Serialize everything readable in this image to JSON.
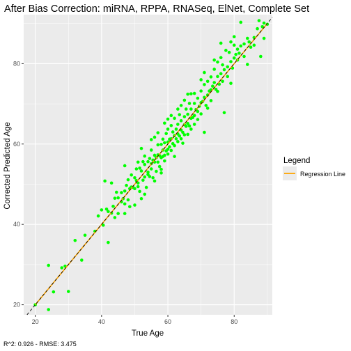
{
  "chart_data": {
    "type": "scatter",
    "title": "After Bias Correction: miRNA, RPPA, RNASeq, ElNet, Complete Set",
    "xlabel": "True Age",
    "ylabel": "Corrected Predicted Age",
    "caption": "R^2: 0.926 - RMSE: 3.475",
    "xlim": [
      16.5,
      91.5
    ],
    "ylim": [
      17.5,
      92.2
    ],
    "x_ticks": [
      20,
      40,
      60,
      80
    ],
    "y_ticks": [
      20,
      40,
      60,
      80
    ],
    "grid": true,
    "legend": {
      "title": "Legend",
      "position": "right",
      "entries": [
        {
          "label": "Regression Line",
          "color": "#FFA500"
        }
      ]
    },
    "colors": {
      "points": "#00FF00",
      "regression": "#FFA500",
      "identity": "#000000",
      "panel": "#EBEBEB",
      "grid": "#FFFFFF"
    },
    "identity_line": {
      "slope": 1,
      "intercept": 0,
      "style": "dashed"
    },
    "regression_line": {
      "slope": 1.0,
      "intercept": 0.0
    },
    "points": [
      [
        20,
        20
      ],
      [
        24,
        29.8
      ],
      [
        24,
        18.8
      ],
      [
        25.5,
        23.2
      ],
      [
        28,
        29.2
      ],
      [
        29,
        29.6
      ],
      [
        30,
        23.3
      ],
      [
        32,
        36
      ],
      [
        34,
        31.1
      ],
      [
        35,
        37.3
      ],
      [
        38,
        38.3
      ],
      [
        39,
        42.1
      ],
      [
        40,
        43.6
      ],
      [
        40.5,
        39.8
      ],
      [
        41,
        50.8
      ],
      [
        41.5,
        43.8
      ],
      [
        42,
        35.5
      ],
      [
        42,
        43.2
      ],
      [
        43,
        42.8
      ],
      [
        43.5,
        44.5
      ],
      [
        44,
        41.7
      ],
      [
        44.5,
        48
      ],
      [
        45,
        46.6
      ],
      [
        45,
        42.7
      ],
      [
        46,
        47.9
      ],
      [
        46,
        45.6
      ],
      [
        46.5,
        46.4
      ],
      [
        47,
        45.1
      ],
      [
        47,
        48.3
      ],
      [
        47,
        42.7
      ],
      [
        47.5,
        49.7
      ],
      [
        48,
        46.1
      ],
      [
        48,
        51.1
      ],
      [
        48.5,
        48.9
      ],
      [
        48.5,
        44.4
      ],
      [
        49,
        49.3
      ],
      [
        49,
        52.3
      ],
      [
        49.5,
        49.2
      ],
      [
        50,
        48.9
      ],
      [
        50,
        51.6
      ],
      [
        50,
        44.8
      ],
      [
        50.5,
        50.9
      ],
      [
        50.5,
        53.8
      ],
      [
        51,
        49.4
      ],
      [
        51,
        55.5
      ],
      [
        51,
        50.3
      ],
      [
        51.5,
        48.2
      ],
      [
        51.5,
        54
      ],
      [
        52,
        53.3
      ],
      [
        52,
        46.4
      ],
      [
        52.5,
        55.6
      ],
      [
        52.5,
        51
      ],
      [
        53,
        51.8
      ],
      [
        53,
        57
      ],
      [
        53,
        54.9
      ],
      [
        53.5,
        49.2
      ],
      [
        54,
        55.6
      ],
      [
        54,
        53
      ],
      [
        54,
        52.4
      ],
      [
        54.5,
        56.4
      ],
      [
        54.5,
        51.9
      ],
      [
        55,
        55.1
      ],
      [
        55,
        58.5
      ],
      [
        55,
        53.8
      ],
      [
        55.5,
        51.6
      ],
      [
        55.5,
        56
      ],
      [
        56,
        55.5
      ],
      [
        56,
        57.2
      ],
      [
        56,
        50.8
      ],
      [
        56.5,
        56.6
      ],
      [
        56.5,
        53.2
      ],
      [
        57,
        57.3
      ],
      [
        57,
        55.5
      ],
      [
        57,
        59.8
      ],
      [
        57.5,
        54.4
      ],
      [
        57.5,
        57.1
      ],
      [
        58,
        56.6
      ],
      [
        58,
        59.9
      ],
      [
        58,
        53.7
      ],
      [
        58.5,
        58.5
      ],
      [
        58.5,
        61.2
      ],
      [
        58.5,
        56.9
      ],
      [
        59,
        57.2
      ],
      [
        59,
        60.3
      ],
      [
        59,
        55.8
      ],
      [
        59.5,
        58.3
      ],
      [
        59.5,
        62.6
      ],
      [
        60,
        60.5
      ],
      [
        60,
        58.7
      ],
      [
        60,
        63.7
      ],
      [
        60,
        57.5
      ],
      [
        60.5,
        59.3
      ],
      [
        60.5,
        61.2
      ],
      [
        61,
        61.3
      ],
      [
        61,
        64.6
      ],
      [
        61,
        58.4
      ],
      [
        61.5,
        60.1
      ],
      [
        61.5,
        63
      ],
      [
        62,
        62.1
      ],
      [
        62,
        59.6
      ],
      [
        62,
        66.4
      ],
      [
        62.5,
        61.3
      ],
      [
        62.5,
        63.7
      ],
      [
        63,
        62.5
      ],
      [
        63,
        60.6
      ],
      [
        63,
        64.9
      ],
      [
        63.5,
        62
      ],
      [
        63.5,
        67.3
      ],
      [
        64,
        63.5
      ],
      [
        64,
        61.3
      ],
      [
        64,
        65.8
      ],
      [
        64.5,
        62.9
      ],
      [
        64.5,
        60.2
      ],
      [
        65,
        64.8
      ],
      [
        65,
        66.8
      ],
      [
        65,
        62.3
      ],
      [
        65.5,
        64.4
      ],
      [
        65.5,
        68.7
      ],
      [
        66,
        65.1
      ],
      [
        66,
        62.4
      ],
      [
        66,
        67.4
      ],
      [
        66.5,
        64.5
      ],
      [
        66.5,
        70.1
      ],
      [
        67,
        66.4
      ],
      [
        67,
        63.7
      ],
      [
        67,
        68.7
      ],
      [
        67.5,
        66.6
      ],
      [
        68,
        67.1
      ],
      [
        68,
        70.1
      ],
      [
        68,
        64.9
      ],
      [
        68.5,
        68.6
      ],
      [
        69,
        68.1
      ],
      [
        69,
        71.4
      ],
      [
        69,
        66.1
      ],
      [
        69.5,
        69.4
      ],
      [
        70,
        70.3
      ],
      [
        70,
        73.2
      ],
      [
        70,
        67.5
      ],
      [
        70.5,
        70.6
      ],
      [
        71,
        71.6
      ],
      [
        71,
        74.8
      ],
      [
        71,
        62.9
      ],
      [
        71.5,
        69.6
      ],
      [
        72,
        72.2
      ],
      [
        72,
        75.6
      ],
      [
        72.5,
        73.2
      ],
      [
        73,
        73.5
      ],
      [
        73,
        76.7
      ],
      [
        73,
        70.8
      ],
      [
        73.5,
        74.4
      ],
      [
        74,
        75.3
      ],
      [
        74,
        78.6
      ],
      [
        74.5,
        73.6
      ],
      [
        75,
        76.8
      ],
      [
        75,
        80.4
      ],
      [
        75.5,
        74.9
      ],
      [
        76,
        77.5
      ],
      [
        76,
        81.5
      ],
      [
        76.5,
        75.6
      ],
      [
        76.5,
        79.7
      ],
      [
        77,
        78.5
      ],
      [
        77,
        67.8
      ],
      [
        77.5,
        83.3
      ],
      [
        78,
        79.2
      ],
      [
        78,
        76.8
      ],
      [
        78.5,
        82.8
      ],
      [
        79,
        80.5
      ],
      [
        79,
        85.4
      ],
      [
        79.5,
        78.9
      ],
      [
        80,
        81.4
      ],
      [
        80,
        84.6
      ],
      [
        80.5,
        82.3
      ],
      [
        81,
        83.6
      ],
      [
        81,
        80.9
      ],
      [
        81.5,
        82.6
      ],
      [
        82,
        84.4
      ],
      [
        83,
        84.9
      ],
      [
        83,
        81.8
      ],
      [
        84,
        86.3
      ],
      [
        84.5,
        85.4
      ],
      [
        85,
        84.1
      ],
      [
        86,
        86.5
      ],
      [
        87,
        88.7
      ],
      [
        87.5,
        90.7
      ],
      [
        88,
        81.8
      ],
      [
        88.5,
        89.2
      ],
      [
        89,
        90.1
      ],
      [
        89,
        86.3
      ],
      [
        90,
        89.8
      ],
      [
        82,
        90.3
      ],
      [
        76,
        85.1
      ],
      [
        86,
        84.6
      ],
      [
        68,
        72.6
      ],
      [
        64,
        69.6
      ],
      [
        57,
        62.8
      ],
      [
        52,
        58.9
      ],
      [
        61,
        67.1
      ],
      [
        66,
        72.4
      ],
      [
        70,
        76
      ],
      [
        58,
        52.8
      ],
      [
        62,
        56.9
      ],
      [
        47,
        54.6
      ],
      [
        43,
        50.3
      ],
      [
        44,
        46.5
      ],
      [
        55,
        61.1
      ],
      [
        59,
        65.2
      ],
      [
        63,
        68.7
      ],
      [
        71,
        77.8
      ],
      [
        74,
        80.9
      ],
      [
        79,
        75.1
      ],
      [
        53,
        47.5
      ],
      [
        56,
        61.7
      ],
      [
        60,
        66.2
      ],
      [
        65,
        70.9
      ],
      [
        67,
        72.5
      ],
      [
        72,
        68.9
      ],
      [
        75,
        73.1
      ],
      [
        80,
        86.7
      ],
      [
        84,
        79.8
      ]
    ]
  }
}
